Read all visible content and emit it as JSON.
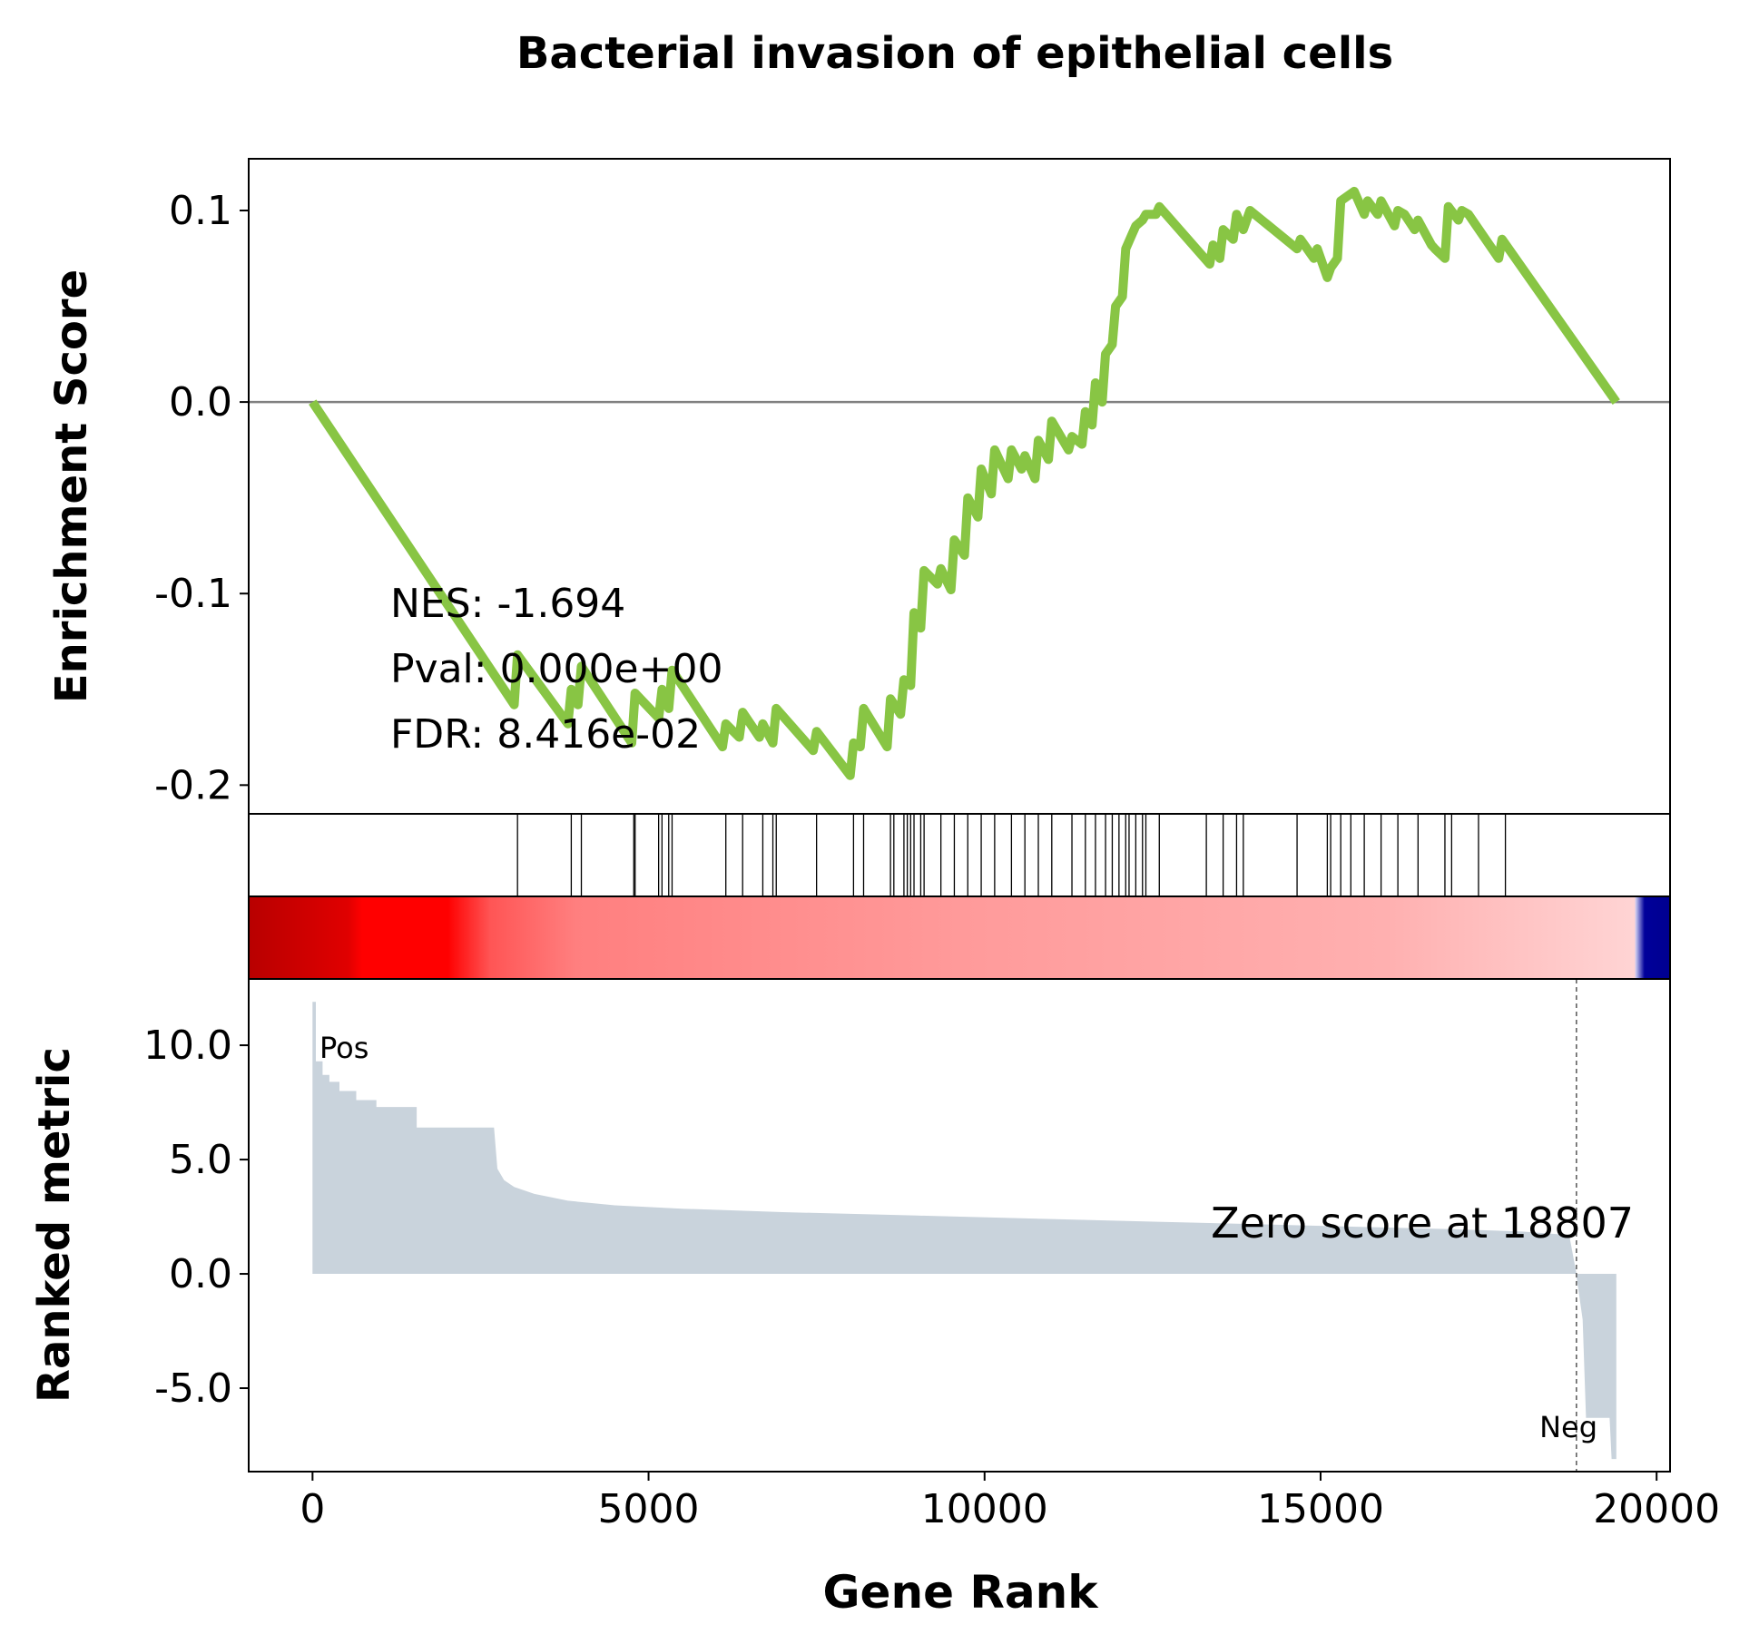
{
  "chart_data": {
    "type": "line",
    "title": "Bacterial invasion of epithelial cells",
    "colors": {
      "es_line": "#88c544",
      "zero_line": "#808080",
      "metric_fill": "#c9d3dc",
      "hit_line": "#000000",
      "pos_label": "#ff0000",
      "neg_label": "#0000dd"
    },
    "enrichment": {
      "ylabel": "Enrichment Score",
      "ylim": [
        -0.215,
        0.127
      ],
      "yticks": [
        {
          "value": 0.1,
          "label": "0.1"
        },
        {
          "value": 0.0,
          "label": "0.0"
        },
        {
          "value": -0.1,
          "label": "-0.1"
        },
        {
          "value": -0.2,
          "label": "-0.2"
        }
      ],
      "stats": [
        "NES: -1.694",
        "Pval: 0.000e+00",
        "FDR: 8.416e-02"
      ],
      "points": [
        [
          0,
          0.0
        ],
        [
          3000,
          -0.158
        ],
        [
          3050,
          -0.132
        ],
        [
          3800,
          -0.168
        ],
        [
          3850,
          -0.15
        ],
        [
          3950,
          -0.158
        ],
        [
          4000,
          -0.138
        ],
        [
          4750,
          -0.178
        ],
        [
          4800,
          -0.152
        ],
        [
          5150,
          -0.165
        ],
        [
          5200,
          -0.15
        ],
        [
          5300,
          -0.16
        ],
        [
          5350,
          -0.14
        ],
        [
          6100,
          -0.18
        ],
        [
          6150,
          -0.168
        ],
        [
          6350,
          -0.175
        ],
        [
          6400,
          -0.162
        ],
        [
          6650,
          -0.175
        ],
        [
          6700,
          -0.168
        ],
        [
          6850,
          -0.178
        ],
        [
          6900,
          -0.16
        ],
        [
          7450,
          -0.182
        ],
        [
          7500,
          -0.172
        ],
        [
          8000,
          -0.195
        ],
        [
          8050,
          -0.178
        ],
        [
          8150,
          -0.18
        ],
        [
          8200,
          -0.16
        ],
        [
          8550,
          -0.18
        ],
        [
          8600,
          -0.155
        ],
        [
          8750,
          -0.163
        ],
        [
          8800,
          -0.145
        ],
        [
          8900,
          -0.148
        ],
        [
          8950,
          -0.11
        ],
        [
          9050,
          -0.118
        ],
        [
          9100,
          -0.088
        ],
        [
          9300,
          -0.095
        ],
        [
          9350,
          -0.087
        ],
        [
          9500,
          -0.098
        ],
        [
          9550,
          -0.072
        ],
        [
          9700,
          -0.08
        ],
        [
          9750,
          -0.05
        ],
        [
          9900,
          -0.06
        ],
        [
          9950,
          -0.035
        ],
        [
          10100,
          -0.048
        ],
        [
          10150,
          -0.025
        ],
        [
          10350,
          -0.04
        ],
        [
          10400,
          -0.025
        ],
        [
          10550,
          -0.035
        ],
        [
          10600,
          -0.028
        ],
        [
          10750,
          -0.04
        ],
        [
          10800,
          -0.02
        ],
        [
          10950,
          -0.03
        ],
        [
          11000,
          -0.01
        ],
        [
          11250,
          -0.025
        ],
        [
          11300,
          -0.018
        ],
        [
          11450,
          -0.022
        ],
        [
          11500,
          -0.005
        ],
        [
          11600,
          -0.012
        ],
        [
          11650,
          0.01
        ],
        [
          11750,
          0.0
        ],
        [
          11800,
          0.025
        ],
        [
          11900,
          0.03
        ],
        [
          11950,
          0.05
        ],
        [
          12050,
          0.055
        ],
        [
          12100,
          0.08
        ],
        [
          12200,
          0.088
        ],
        [
          12250,
          0.092
        ],
        [
          12350,
          0.095
        ],
        [
          12400,
          0.098
        ],
        [
          12550,
          0.098
        ],
        [
          12600,
          0.102
        ],
        [
          13350,
          0.072
        ],
        [
          13400,
          0.082
        ],
        [
          13500,
          0.075
        ],
        [
          13550,
          0.09
        ],
        [
          13700,
          0.085
        ],
        [
          13750,
          0.098
        ],
        [
          13850,
          0.09
        ],
        [
          13950,
          0.1
        ],
        [
          14650,
          0.08
        ],
        [
          14700,
          0.085
        ],
        [
          14900,
          0.075
        ],
        [
          14950,
          0.08
        ],
        [
          15100,
          0.065
        ],
        [
          15150,
          0.07
        ],
        [
          15250,
          0.075
        ],
        [
          15300,
          0.105
        ],
        [
          15500,
          0.11
        ],
        [
          15650,
          0.098
        ],
        [
          15700,
          0.105
        ],
        [
          15850,
          0.098
        ],
        [
          15900,
          0.105
        ],
        [
          16100,
          0.092
        ],
        [
          16150,
          0.1
        ],
        [
          16250,
          0.098
        ],
        [
          16400,
          0.09
        ],
        [
          16450,
          0.095
        ],
        [
          16650,
          0.082
        ],
        [
          16700,
          0.08
        ],
        [
          16850,
          0.075
        ],
        [
          16900,
          0.102
        ],
        [
          17050,
          0.095
        ],
        [
          17100,
          0.1
        ],
        [
          17200,
          0.098
        ],
        [
          17650,
          0.075
        ],
        [
          17700,
          0.085
        ],
        [
          19400,
          0.0
        ]
      ]
    },
    "hits": [
      3050,
      3850,
      4000,
      4780,
      4800,
      5150,
      5200,
      5300,
      5350,
      6150,
      6400,
      6700,
      6850,
      6900,
      7500,
      8050,
      8200,
      8600,
      8650,
      8800,
      8850,
      8900,
      8950,
      9050,
      9100,
      9350,
      9550,
      9750,
      9950,
      10150,
      10400,
      10600,
      10800,
      11000,
      11300,
      11500,
      11650,
      11800,
      11900,
      12000,
      12100,
      12150,
      12250,
      12350,
      12400,
      12600,
      13300,
      13550,
      13750,
      13850,
      14650,
      15100,
      15150,
      15300,
      15450,
      15650,
      15900,
      16150,
      16450,
      16850,
      16950,
      17350,
      17750
    ],
    "metric": {
      "ylabel": "Ranked metric",
      "xlabel": "Gene Rank",
      "xlim": [
        -950,
        20200
      ],
      "ylim": [
        -8.65,
        12.9
      ],
      "xticks": [
        {
          "value": 0,
          "label": "0"
        },
        {
          "value": 5000,
          "label": "5000"
        },
        {
          "value": 10000,
          "label": "10000"
        },
        {
          "value": 15000,
          "label": "15000"
        },
        {
          "value": 20000,
          "label": "20000"
        }
      ],
      "yticks": [
        {
          "value": 10,
          "label": "10.0"
        },
        {
          "value": 5,
          "label": "5.0"
        },
        {
          "value": 0,
          "label": "0.0"
        },
        {
          "value": -5,
          "label": "-5.0"
        }
      ],
      "pos_label": "Pos",
      "neg_label": "Neg",
      "zero_score_rank": 18807,
      "zero_score_text": "Zero score at 18807",
      "total_genes": 19400,
      "points": [
        [
          0,
          11.9
        ],
        [
          50,
          11.9
        ],
        [
          50,
          9.3
        ],
        [
          150,
          9.3
        ],
        [
          150,
          8.7
        ],
        [
          250,
          8.7
        ],
        [
          250,
          8.4
        ],
        [
          400,
          8.4
        ],
        [
          400,
          8.0
        ],
        [
          650,
          8.0
        ],
        [
          650,
          7.6
        ],
        [
          950,
          7.6
        ],
        [
          950,
          7.3
        ],
        [
          1550,
          7.3
        ],
        [
          1550,
          6.4
        ],
        [
          2700,
          6.4
        ],
        [
          2750,
          4.6
        ],
        [
          2850,
          4.1
        ],
        [
          3000,
          3.8
        ],
        [
          3300,
          3.5
        ],
        [
          3800,
          3.2
        ],
        [
          4500,
          3.0
        ],
        [
          5500,
          2.85
        ],
        [
          7000,
          2.7
        ],
        [
          9000,
          2.55
        ],
        [
          11000,
          2.4
        ],
        [
          13000,
          2.25
        ],
        [
          15000,
          2.1
        ],
        [
          17000,
          1.95
        ],
        [
          18000,
          1.85
        ],
        [
          18700,
          1.7
        ],
        [
          18807,
          0.0
        ],
        [
          18807,
          -0.1
        ],
        [
          18900,
          -2.0
        ],
        [
          18950,
          -6.3
        ],
        [
          19300,
          -6.3
        ],
        [
          19330,
          -8.1
        ],
        [
          19400,
          -8.1
        ]
      ]
    }
  }
}
